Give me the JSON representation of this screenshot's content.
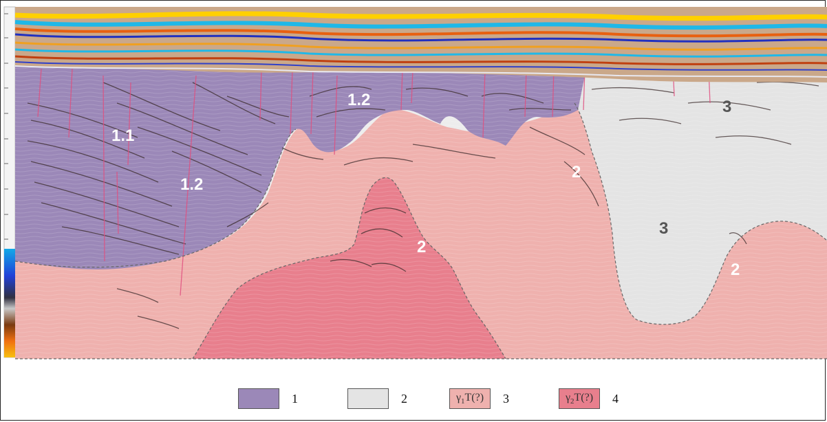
{
  "colors": {
    "unit_1": "#9b88b8",
    "unit_2": "#e4e4e4",
    "unit_3": "#efb1ae",
    "unit_4": "#e87f8d",
    "ocean_reflectors": "#1fb8e8"
  },
  "zone_labels": {
    "z1_1": "1.1",
    "z1_2a": "1.2",
    "z1_2b": "1.2",
    "z2a": "2",
    "z2b": "2",
    "z2c": "2",
    "z3a": "3",
    "z3b": "3"
  },
  "legend": {
    "item1": {
      "number": "1"
    },
    "item2": {
      "number": "2"
    },
    "item3": {
      "symbol": "γ1T(?)",
      "sym_main": "γ",
      "sym_sub": "1",
      "sym_rest": "T(?)",
      "number": "3"
    },
    "item4": {
      "symbol": "γ2T(?)",
      "sym_main": "γ",
      "sym_sub": "2",
      "sym_rest": "T(?)",
      "number": "4"
    }
  }
}
